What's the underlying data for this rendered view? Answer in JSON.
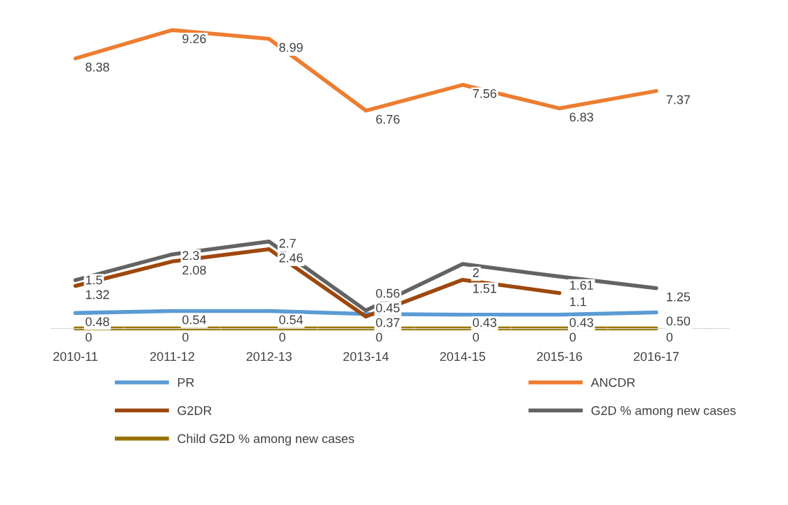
{
  "chart_data": {
    "type": "line",
    "categories": [
      "2010-11",
      "2011-12",
      "2012-13",
      "2013-14",
      "2014-15",
      "2015-16",
      "2016-17"
    ],
    "series": [
      {
        "name": "PR",
        "color": "#5b9bd5",
        "values": [
          0.48,
          0.54,
          0.54,
          0.45,
          0.43,
          0.43,
          0.5
        ],
        "value_labels": [
          "0.48",
          "0.54",
          "0.54",
          "0.45",
          "0.43",
          "0.43",
          "0.50"
        ]
      },
      {
        "name": "ANCDR",
        "color": "#ed7d31",
        "values": [
          8.38,
          9.26,
          8.99,
          6.76,
          7.56,
          6.83,
          7.37
        ],
        "value_labels": [
          "8.38",
          "9.26",
          "8.99",
          "6.76",
          "7.56",
          "6.83",
          "7.37"
        ]
      },
      {
        "name": "G2DR",
        "color": "#9e480e",
        "values": [
          1.32,
          2.08,
          2.46,
          0.37,
          1.51,
          1.1,
          null
        ],
        "value_labels": [
          "1.32",
          "2.08",
          "2.46",
          "0.37",
          "1.51",
          "1.1",
          null
        ]
      },
      {
        "name": "G2D % among new cases",
        "color": "#636363",
        "values": [
          1.5,
          2.3,
          2.7,
          0.56,
          2,
          1.61,
          1.25
        ],
        "value_labels": [
          "1.5",
          "2.3",
          "2.7",
          "0.56",
          "2",
          "1.61",
          "1.25"
        ]
      },
      {
        "name": "Child G2D % among new cases",
        "color": "#997300",
        "values": [
          0,
          0,
          0,
          0,
          0,
          0,
          0
        ],
        "value_labels": [
          "0",
          "0",
          "0",
          "0",
          "0",
          "0",
          "0"
        ]
      }
    ],
    "legend": "bottom",
    "grid": false,
    "marker": "none",
    "line_style": "solid",
    "tick_labels": "x"
  }
}
